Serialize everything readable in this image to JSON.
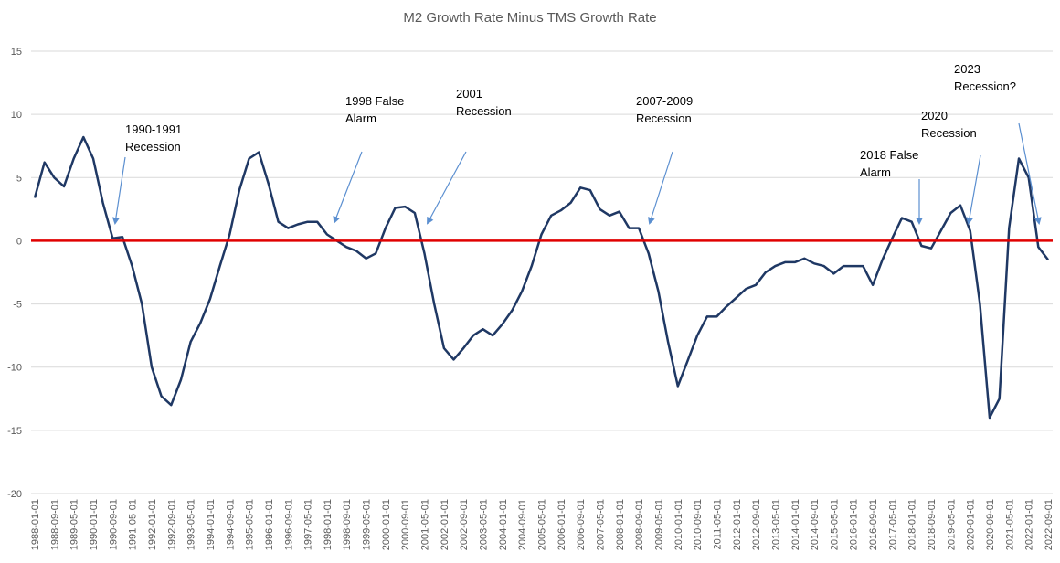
{
  "chart_data": {
    "type": "line",
    "title": "M2 Growth Rate Minus TMS Growth Rate",
    "x": [
      "1988-01-01",
      "1988-05-01",
      "1988-09-01",
      "1989-01-01",
      "1989-05-01",
      "1989-09-01",
      "1990-01-01",
      "1990-05-01",
      "1990-09-01",
      "1991-01-01",
      "1991-05-01",
      "1991-09-01",
      "1992-01-01",
      "1992-05-01",
      "1992-09-01",
      "1993-01-01",
      "1993-05-01",
      "1993-09-01",
      "1994-01-01",
      "1994-05-01",
      "1994-09-01",
      "1995-01-01",
      "1995-05-01",
      "1995-09-01",
      "1996-01-01",
      "1996-05-01",
      "1996-09-01",
      "1997-01-01",
      "1997-05-01",
      "1997-09-01",
      "1998-01-01",
      "1998-05-01",
      "1998-09-01",
      "1999-01-01",
      "1999-05-01",
      "1999-09-01",
      "2000-01-01",
      "2000-05-01",
      "2000-09-01",
      "2001-01-01",
      "2001-05-01",
      "2001-09-01",
      "2002-01-01",
      "2002-05-01",
      "2002-09-01",
      "2003-01-01",
      "2003-05-01",
      "2003-09-01",
      "2004-01-01",
      "2004-05-01",
      "2004-09-01",
      "2005-01-01",
      "2005-05-01",
      "2005-09-01",
      "2006-01-01",
      "2006-05-01",
      "2006-09-01",
      "2007-01-01",
      "2007-05-01",
      "2007-09-01",
      "2008-01-01",
      "2008-05-01",
      "2008-09-01",
      "2009-01-01",
      "2009-05-01",
      "2009-09-01",
      "2010-01-01",
      "2010-05-01",
      "2010-09-01",
      "2011-01-01",
      "2011-05-01",
      "2011-09-01",
      "2012-01-01",
      "2012-05-01",
      "2012-09-01",
      "2013-01-01",
      "2013-05-01",
      "2013-09-01",
      "2014-01-01",
      "2014-05-01",
      "2014-09-01",
      "2015-01-01",
      "2015-05-01",
      "2015-09-01",
      "2016-01-01",
      "2016-05-01",
      "2016-09-01",
      "2017-01-01",
      "2017-05-01",
      "2017-09-01",
      "2018-01-01",
      "2018-05-01",
      "2018-09-01",
      "2019-01-01",
      "2019-05-01",
      "2019-09-01",
      "2020-01-01",
      "2020-05-01",
      "2020-09-01",
      "2021-01-01",
      "2021-05-01",
      "2021-09-01",
      "2022-01-01",
      "2022-05-01",
      "2022-09-01"
    ],
    "values": [
      3.4,
      6.2,
      5.0,
      4.3,
      6.5,
      8.2,
      6.5,
      3,
      0.2,
      0.3,
      -2,
      -5,
      -10,
      -12.3,
      -13,
      -11,
      -8,
      -6.5,
      -4.6,
      -2,
      0.5,
      4,
      6.5,
      7,
      4.5,
      1.5,
      1,
      1.3,
      1.5,
      1.5,
      0.5,
      0,
      -0.5,
      -0.8,
      -1.4,
      -1,
      1,
      2.6,
      2.7,
      2.2,
      -1,
      -5,
      -8.5,
      -9.4,
      -8.5,
      -7.5,
      -7,
      -7.5,
      -6.6,
      -5.5,
      -4,
      -2,
      0.5,
      2,
      2.4,
      3,
      4.2,
      4,
      2.5,
      2,
      2.3,
      1,
      1,
      -1,
      -4,
      -8,
      -11.5,
      -9.5,
      -7.5,
      -6,
      -6,
      -5.2,
      -4.5,
      -3.8,
      -3.5,
      -2.5,
      -2,
      -1.7,
      -1.7,
      -1.4,
      -1.8,
      -2,
      -2.6,
      -2,
      -2,
      -2,
      -3.5,
      -1.5,
      0.2,
      1.8,
      1.5,
      -0.4,
      -0.6,
      0.8,
      2.2,
      2.8,
      0.8,
      -5,
      -14,
      -12.5,
      1,
      6.5,
      5,
      -0.5,
      -1.5
    ],
    "color": "#1f3864",
    "ylim": [
      -20,
      15
    ],
    "yticks": [
      -20,
      -15,
      -10,
      -5,
      0,
      5,
      10,
      15
    ],
    "grid": true,
    "xticks": [
      "1988-01-01",
      "1988-09-01",
      "1989-05-01",
      "1990-01-01",
      "1990-09-01",
      "1991-05-01",
      "1992-01-01",
      "1992-09-01",
      "1993-05-01",
      "1994-01-01",
      "1994-09-01",
      "1995-05-01",
      "1996-01-01",
      "1996-09-01",
      "1997-05-01",
      "1998-01-01",
      "1998-09-01",
      "1999-05-01",
      "2000-01-01",
      "2000-09-01",
      "2001-05-01",
      "2002-01-01",
      "2002-09-01",
      "2003-05-01",
      "2004-01-01",
      "2004-09-01",
      "2005-05-01",
      "2006-01-01",
      "2006-09-01",
      "2007-05-01",
      "2008-01-01",
      "2008-09-01",
      "2009-05-01",
      "2010-01-01",
      "2010-09-01",
      "2011-05-01",
      "2012-01-01",
      "2012-09-01",
      "2013-05-01",
      "2014-01-01",
      "2014-09-01",
      "2015-05-01",
      "2016-01-01",
      "2016-09-01",
      "2017-05-01",
      "2018-01-01",
      "2018-09-01",
      "2019-05-01",
      "2020-01-01",
      "2020-09-01",
      "2021-05-01",
      "2022-01-01",
      "2022-09-01"
    ],
    "reference_line": {
      "value": 0,
      "color": "#e00000"
    },
    "annotations": [
      [
        "1990-1991",
        "Recession"
      ],
      [
        "1998 False",
        "Alarm"
      ],
      [
        "2001",
        "Recession"
      ],
      [
        "2007-2009",
        "Recession"
      ],
      [
        "2018 False",
        "Alarm"
      ],
      [
        "2020",
        "Recession"
      ],
      [
        "2023",
        "Recession?"
      ]
    ]
  }
}
